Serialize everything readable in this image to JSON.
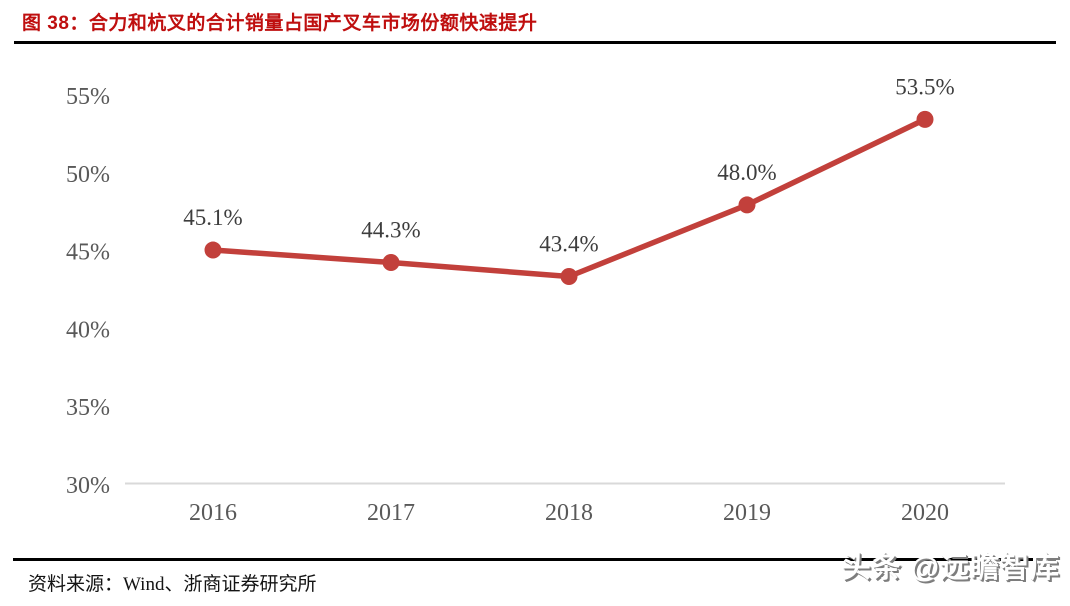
{
  "header": {
    "title": "图 38：合力和杭叉的合计销量占国产叉车市场份额快速提升"
  },
  "chart_data": {
    "type": "line",
    "title": "合力和杭叉的合计销量占国产叉车市场份额快速提升",
    "categories": [
      "2016",
      "2017",
      "2018",
      "2019",
      "2020"
    ],
    "values": [
      45.1,
      44.3,
      43.4,
      48.0,
      53.5
    ],
    "point_labels": [
      "45.1%",
      "44.3%",
      "43.4%",
      "48.0%",
      "53.5%"
    ],
    "y_ticks": [
      {
        "value": 55,
        "label": "55%"
      },
      {
        "value": 50,
        "label": "50%"
      },
      {
        "value": 45,
        "label": "45%"
      },
      {
        "value": 40,
        "label": "40%"
      },
      {
        "value": 35,
        "label": "35%"
      },
      {
        "value": 30,
        "label": "30%"
      }
    ],
    "ylim": [
      30,
      55
    ],
    "grid": false,
    "legend": "none",
    "colors": {
      "series": "#c2403b",
      "axis_line": "#d9d9d9",
      "tick_text": "#595959",
      "data_label_text": "#3d3d3d"
    }
  },
  "footer": {
    "source": "资料来源：Wind、浙商证券研究所",
    "watermark": "头条 @远瞻智库"
  }
}
